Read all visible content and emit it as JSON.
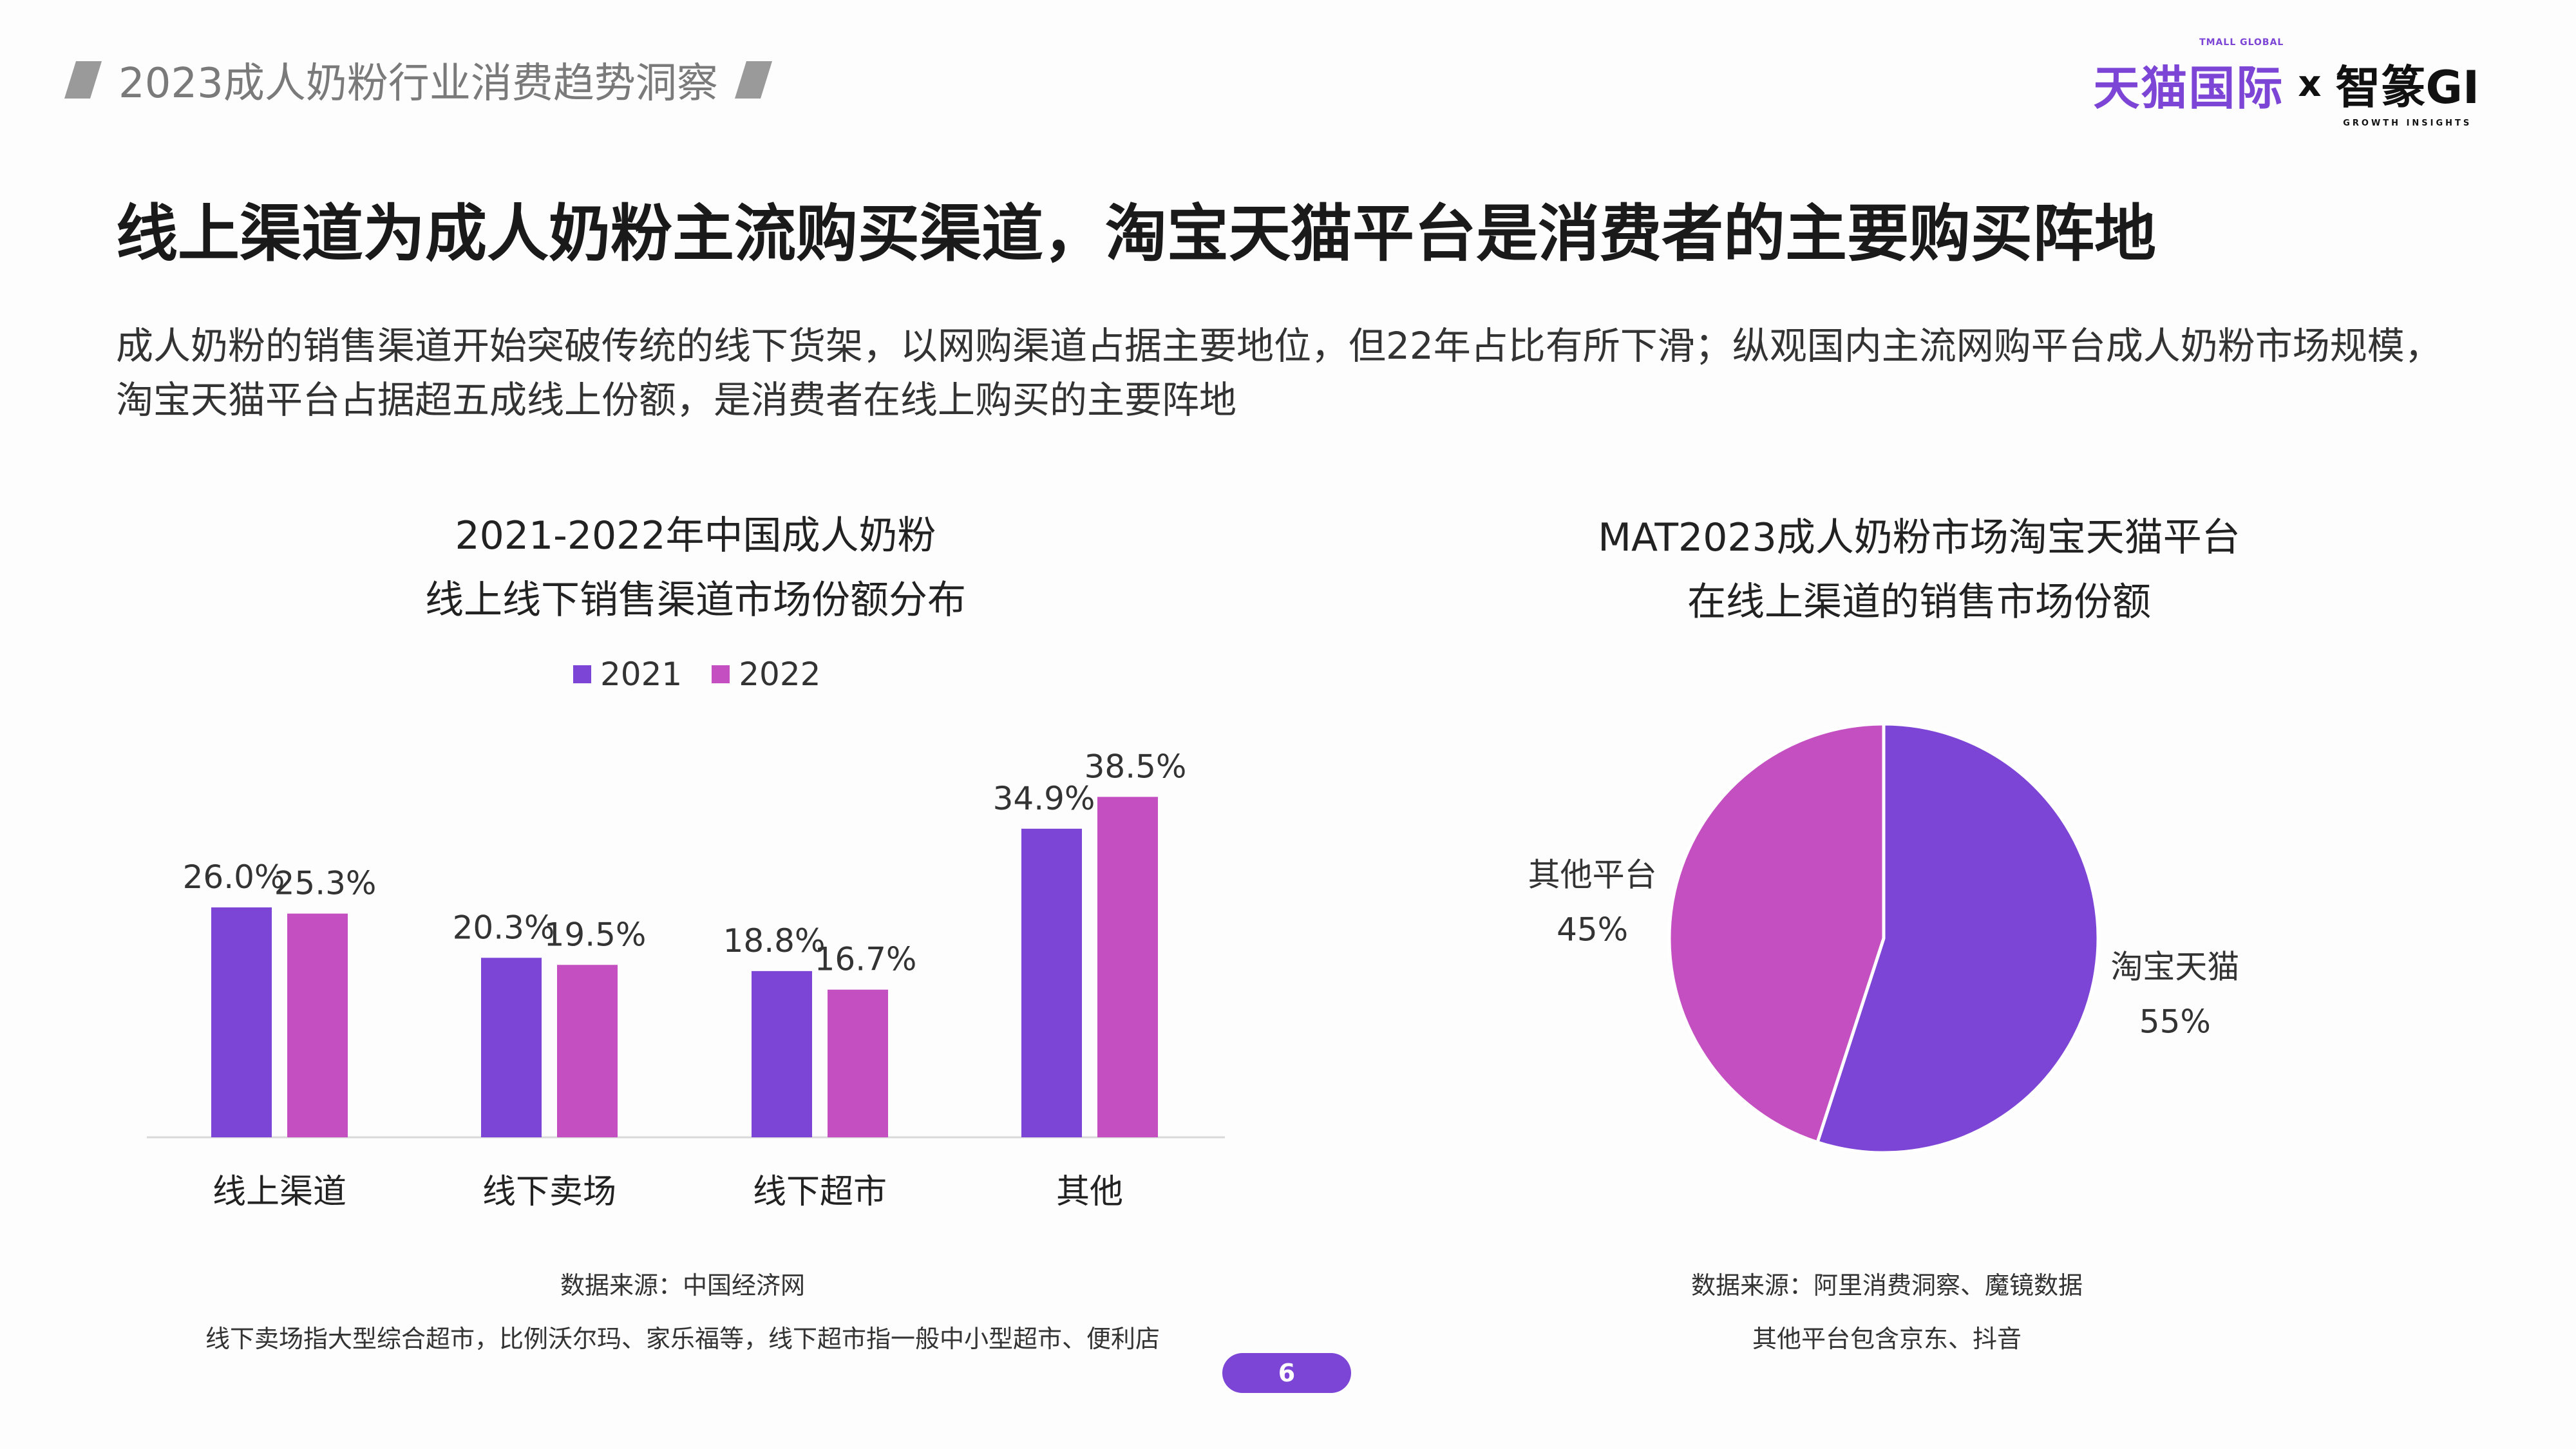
{
  "header": {
    "report_title": "2023成人奶粉行业消费趋势洞察"
  },
  "logos": {
    "tmall_text": "天猫国际",
    "tmall_sub": "TMALL GLOBAL",
    "x": "x",
    "partner_text": "智篆GI",
    "partner_sub": "GROWTH INSIGHTS"
  },
  "page": {
    "headline": "线上渠道为成人奶粉主流购买渠道，淘宝天猫平台是消费者的主要购买阵地",
    "description_line1": "成人奶粉的销售渠道开始突破传统的线下货架，以网购渠道占据主要地位，但22年占比有所下滑；纵观国内主流网购平台成人奶粉市场规模，",
    "description_line2": "淘宝天猫平台占据超五成线上份额，是消费者在线上购买的主要阵地",
    "page_number": "6"
  },
  "colors": {
    "series_2021": "#7d45d6",
    "series_2022": "#c44fc1",
    "accent": "#7d45d6"
  },
  "footnotes": {
    "left_source": "数据来源：中国经济网",
    "left_note": "线下卖场指大型综合超市，比例沃尔玛、家乐福等，线下超市指一般中小型超市、便利店",
    "right_source": "数据来源：阿里消费洞察、魔镜数据",
    "right_note": "其他平台包含京东、抖音"
  },
  "chart_data": [
    {
      "type": "bar",
      "title": "2021-2022年中国成人奶粉",
      "subtitle": "线上线下销售渠道市场份额分布",
      "categories": [
        "线上渠道",
        "线下卖场",
        "线下超市",
        "其他"
      ],
      "series": [
        {
          "name": "2021",
          "values": [
            26.0,
            20.3,
            18.8,
            34.9
          ],
          "labels": [
            "26.0%",
            "20.3%",
            "18.8%",
            "34.9%"
          ]
        },
        {
          "name": "2022",
          "values": [
            25.3,
            19.5,
            16.7,
            38.5
          ],
          "labels": [
            "25.3%",
            "19.5%",
            "16.7%",
            "38.5%"
          ]
        }
      ],
      "unit": "%",
      "legend": "top",
      "grid": false,
      "ylim": [
        0,
        45
      ]
    },
    {
      "type": "pie",
      "title": "MAT2023成人奶粉市场淘宝天猫平台",
      "subtitle": "在线上渠道的销售市场份额",
      "slices": [
        {
          "label": "淘宝天猫",
          "value": 55,
          "value_label": "55%",
          "color": "#7d45d6"
        },
        {
          "label": "其他平台",
          "value": 45,
          "value_label": "45%",
          "color": "#c44fc1"
        }
      ]
    }
  ]
}
